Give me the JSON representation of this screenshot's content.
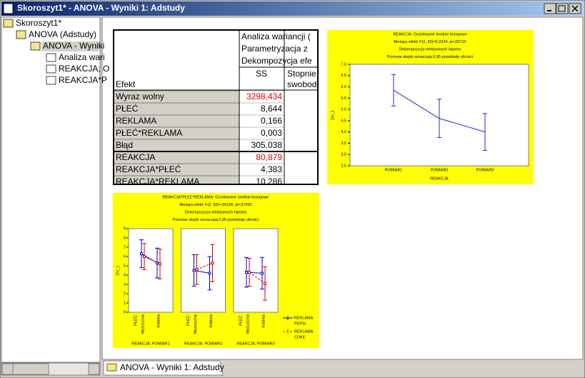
{
  "window": {
    "title": "Skoroszyt1* - ANOVA - Wyniki 1: Adstudy"
  },
  "tree": [
    "Skoroszyt1*",
    "ANOVA (Adstudy)",
    "ANOVA - Wyniki",
    "Analiza wari",
    "REAKCJA; O",
    "REAKCJA*P"
  ],
  "table": {
    "header_lines": [
      "Analiza wariancji (",
      "Parametryzacja z",
      "Dekompozycja efe"
    ],
    "columns": [
      "Efekt",
      "SS",
      [
        "Stopnie",
        "swobod"
      ]
    ],
    "rows": [
      [
        "Wyraz wolny",
        "3298,434"
      ],
      [
        "PŁEĆ",
        "8,644"
      ],
      [
        "REKLAMA",
        "0,166"
      ],
      [
        "PŁEĆ*REKLAMA",
        "0,003"
      ],
      [
        "Błąd",
        "305,038"
      ],
      [
        "REAKCJA",
        "80,879"
      ],
      [
        "REAKCJA*PŁEĆ",
        "4,383"
      ],
      [
        "REAKCJA*REKLAMA",
        "10,286"
      ]
    ],
    "red_rows": [
      0,
      5
    ]
  },
  "chart_data": [
    {
      "type": "line",
      "title_lines": [
        "REAKCJA; Oczekiwane średnie brzegowe",
        "Bieżący efekt: F(2, 92)=5,2224, p=,00710",
        "Dekompozycja efektywnych hipotez",
        "Pionowe słupki oznaczają 0,95 przedziały ufności"
      ],
      "x_label": "REAKCJA",
      "y_label": "DV_1",
      "categories": [
        "POMIAR1",
        "POMIAR2",
        "POMIAR3"
      ],
      "values": [
        5.85,
        4.6,
        4.0
      ],
      "errors": [
        0.7,
        0.85,
        0.82
      ],
      "color": "#2a2ad0",
      "ylim": [
        2.5,
        7.0
      ],
      "yticks": [
        {
          "value": 2.5,
          "label": "2,5"
        },
        {
          "value": 3.0,
          "label": "3,0"
        },
        {
          "value": 3.5,
          "label": "3,5"
        },
        {
          "value": 4.0,
          "label": "4,0"
        },
        {
          "value": 4.5,
          "label": "4,5"
        },
        {
          "value": 5.0,
          "label": "5,0"
        },
        {
          "value": 5.5,
          "label": "5,5"
        },
        {
          "value": 6.0,
          "label": "6,0"
        },
        {
          "value": 6.5,
          "label": "6,5"
        },
        {
          "value": 7.0,
          "label": "7,0"
        }
      ]
    },
    {
      "type": "panel-line",
      "title_lines": [
        "REAKCJA*PŁEĆ*REKLAMA; Oczekiwane średnie brzegowe",
        "Bieżący efekt: F(2, 92)=,56195, p=,57202",
        "Dekompozycja efektywnych hipotez",
        "Pionowe słupki oznaczają 0,95 przedziały ufności"
      ],
      "y_label": "DV_1",
      "x_label": "PŁEĆ:",
      "categories": [
        "Mężczyzna",
        "Kobieta"
      ],
      "panel_titles": [
        "REAKCJA: POMIAR1",
        "REAKCJA: POMIAR2",
        "REAKCJA: POMIAR3"
      ],
      "legend_title": "REKLAMA",
      "series": [
        {
          "name": "PEPSI",
          "color": "#0000cc",
          "values": [
            [
              6.3,
              5.3
            ],
            [
              4.5,
              4.2
            ],
            [
              4.3,
              4.2
            ]
          ],
          "errors": [
            [
              1.5,
              1.6
            ],
            [
              1.7,
              1.8
            ],
            [
              1.6,
              1.7
            ]
          ]
        },
        {
          "name": "COKE",
          "color": "#cc0000",
          "values": [
            [
              6.0,
              5.2
            ],
            [
              4.6,
              5.3
            ],
            [
              4.3,
              3.1
            ]
          ],
          "errors": [
            [
              1.4,
              1.6
            ],
            [
              1.6,
              2.0
            ],
            [
              1.5,
              1.8
            ]
          ]
        }
      ],
      "ylim": [
        0,
        9
      ],
      "yticks": [
        0,
        1,
        2,
        3,
        4,
        5,
        6,
        7,
        8,
        9
      ]
    }
  ],
  "tab": "ANOVA - Wyniki 1: Adstudy"
}
